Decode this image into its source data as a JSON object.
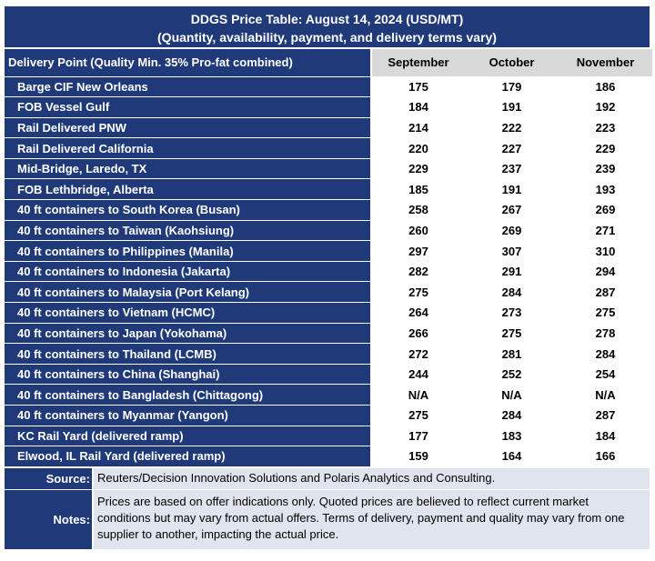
{
  "title": {
    "line1": "DDGS Price Table: August 14, 2024 (USD/MT)",
    "line2": "(Quantity, availability, payment, and delivery terms vary)"
  },
  "table": {
    "header": {
      "point": "Delivery Point (Quality Min. 35% Pro-fat combined)",
      "months": [
        "September",
        "October",
        "November"
      ]
    },
    "rows": [
      {
        "point": "Barge CIF New Orleans",
        "values": [
          "175",
          "179",
          "186"
        ]
      },
      {
        "point": "FOB Vessel Gulf",
        "values": [
          "184",
          "191",
          "192"
        ]
      },
      {
        "point": "Rail Delivered PNW",
        "values": [
          "214",
          "222",
          "223"
        ]
      },
      {
        "point": "Rail Delivered California",
        "values": [
          "220",
          "227",
          "229"
        ]
      },
      {
        "point": "Mid-Bridge, Laredo, TX",
        "values": [
          "229",
          "237",
          "239"
        ]
      },
      {
        "point": "FOB Lethbridge, Alberta",
        "values": [
          "185",
          "191",
          "193"
        ]
      },
      {
        "point": "40 ft containers to South Korea (Busan)",
        "values": [
          "258",
          "267",
          "269"
        ]
      },
      {
        "point": "40 ft containers to Taiwan (Kaohsiung)",
        "values": [
          "260",
          "269",
          "271"
        ]
      },
      {
        "point": "40 ft containers to Philippines (Manila)",
        "values": [
          "297",
          "307",
          "310"
        ]
      },
      {
        "point": "40 ft containers to Indonesia (Jakarta)",
        "values": [
          "282",
          "291",
          "294"
        ]
      },
      {
        "point": "40 ft containers to Malaysia (Port Kelang)",
        "values": [
          "275",
          "284",
          "287"
        ]
      },
      {
        "point": "40 ft containers to Vietnam (HCMC)",
        "values": [
          "264",
          "273",
          "275"
        ]
      },
      {
        "point": "40 ft containers to Japan (Yokohama)",
        "values": [
          "266",
          "275",
          "278"
        ]
      },
      {
        "point": "40 ft containers to Thailand (LCMB)",
        "values": [
          "272",
          "281",
          "284"
        ]
      },
      {
        "point": "40 ft containers to China (Shanghai)",
        "values": [
          "244",
          "252",
          "254"
        ]
      },
      {
        "point": "40 ft containers to Bangladesh (Chittagong)",
        "values": [
          "N/A",
          "N/A",
          "N/A"
        ]
      },
      {
        "point": "40 ft containers to Myanmar (Yangon)",
        "values": [
          "275",
          "284",
          "287"
        ]
      },
      {
        "point": "KC Rail Yard (delivered ramp)",
        "values": [
          "177",
          "183",
          "184"
        ]
      },
      {
        "point": "Elwood, IL Rail Yard (delivered ramp)",
        "values": [
          "159",
          "164",
          "166"
        ]
      }
    ]
  },
  "footer": {
    "source_label": "Source:",
    "source_text": "Reuters/Decision Innovation Solutions and Polaris Analytics and Consulting.",
    "notes_label": "Notes:",
    "notes_text": "Prices are based on offer indications only. Quoted prices are believed to reflect current market conditions but may vary from actual offers. Terms of delivery, payment and quality may vary from one supplier to another, impacting the actual price."
  },
  "colors": {
    "header_navy": "#203a79",
    "month_header_gray": "#d9d9d9",
    "footer_text_bg": "#dfe4ee"
  }
}
